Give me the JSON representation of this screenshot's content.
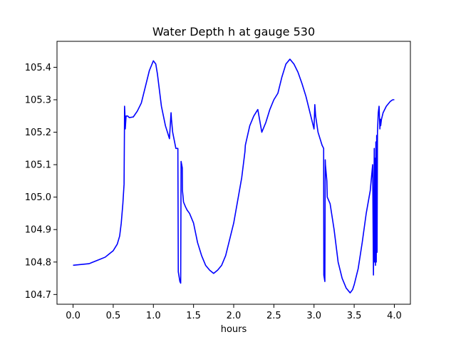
{
  "chart_data": {
    "type": "line",
    "title": "Water Depth h at gauge 530",
    "xlabel": "hours",
    "ylabel": "",
    "xlim": [
      -0.2,
      4.2
    ],
    "ylim": [
      104.67,
      105.48
    ],
    "xticks": [
      0.0,
      0.5,
      1.0,
      1.5,
      2.0,
      2.5,
      3.0,
      3.5,
      4.0
    ],
    "xtick_labels": [
      "0.0",
      "0.5",
      "1.0",
      "1.5",
      "2.0",
      "2.5",
      "3.0",
      "3.5",
      "4.0"
    ],
    "yticks": [
      104.7,
      104.8,
      104.9,
      105.0,
      105.1,
      105.2,
      105.3,
      105.4
    ],
    "ytick_labels": [
      "104.7",
      "104.8",
      "104.9",
      "105.0",
      "105.1",
      "105.2",
      "105.3",
      "105.4"
    ],
    "grid": false,
    "line_color": "#0000ff",
    "series": [
      {
        "x": [
          0.0,
          0.2,
          0.3,
          0.4,
          0.45,
          0.5,
          0.55,
          0.58,
          0.6,
          0.62,
          0.635,
          0.64,
          0.641,
          0.645,
          0.65,
          0.66,
          0.68,
          0.7,
          0.75,
          0.8,
          0.85,
          0.9,
          0.95,
          1.0,
          1.03,
          1.05,
          1.08,
          1.1,
          1.15,
          1.2,
          1.22,
          1.225,
          1.24,
          1.28,
          1.305,
          1.31,
          1.33,
          1.34,
          1.345,
          1.36,
          1.362,
          1.37,
          1.375,
          1.4,
          1.42,
          1.45,
          1.5,
          1.55,
          1.6,
          1.65,
          1.7,
          1.75,
          1.8,
          1.85,
          1.9,
          1.95,
          2.0,
          2.1,
          2.14,
          2.145,
          2.2,
          2.25,
          2.3,
          2.35,
          2.4,
          2.45,
          2.5,
          2.55,
          2.6,
          2.65,
          2.7,
          2.75,
          2.8,
          2.85,
          2.9,
          3.0,
          3.01,
          3.02,
          3.05,
          3.1,
          3.12,
          3.122,
          3.135,
          3.14,
          3.142,
          3.16,
          3.165,
          3.2,
          3.25,
          3.3,
          3.35,
          3.4,
          3.45,
          3.48,
          3.5,
          3.55,
          3.6,
          3.65,
          3.7,
          3.73,
          3.74,
          3.75,
          3.755,
          3.76,
          3.765,
          3.77,
          3.775,
          3.78,
          3.785,
          3.79,
          3.795,
          3.8,
          3.81,
          3.82,
          3.825,
          3.83,
          3.84,
          3.85,
          3.86,
          3.9,
          3.95,
          3.98,
          4.0
        ],
        "y": [
          104.79,
          104.795,
          104.805,
          104.815,
          104.825,
          104.835,
          104.855,
          104.88,
          104.92,
          104.98,
          105.04,
          105.22,
          105.28,
          105.26,
          105.21,
          105.25,
          105.25,
          105.245,
          105.247,
          105.265,
          105.29,
          105.34,
          105.39,
          105.42,
          105.41,
          105.38,
          105.32,
          105.28,
          105.22,
          105.18,
          105.26,
          105.24,
          105.2,
          105.15,
          105.15,
          104.77,
          104.74,
          104.735,
          105.11,
          105.09,
          105.02,
          105.0,
          104.985,
          104.97,
          104.96,
          104.95,
          104.92,
          104.86,
          104.82,
          104.79,
          104.775,
          104.765,
          104.775,
          104.79,
          104.82,
          104.87,
          104.92,
          105.06,
          105.14,
          105.16,
          105.22,
          105.25,
          105.27,
          105.2,
          105.23,
          105.27,
          105.3,
          105.32,
          105.37,
          105.41,
          105.425,
          105.41,
          105.385,
          105.35,
          105.31,
          105.21,
          105.285,
          105.25,
          105.2,
          105.16,
          105.15,
          104.76,
          104.74,
          105.115,
          105.1,
          105.05,
          105.0,
          104.98,
          104.9,
          104.8,
          104.75,
          104.72,
          104.705,
          104.715,
          104.73,
          104.78,
          104.86,
          104.95,
          105.02,
          105.1,
          104.76,
          105.15,
          104.8,
          105.12,
          104.79,
          105.17,
          104.8,
          105.19,
          104.83,
          105.2,
          105.23,
          105.26,
          105.28,
          105.21,
          105.24,
          105.22,
          105.24,
          105.25,
          105.26,
          105.28,
          105.295,
          105.3,
          105.3
        ]
      }
    ]
  }
}
